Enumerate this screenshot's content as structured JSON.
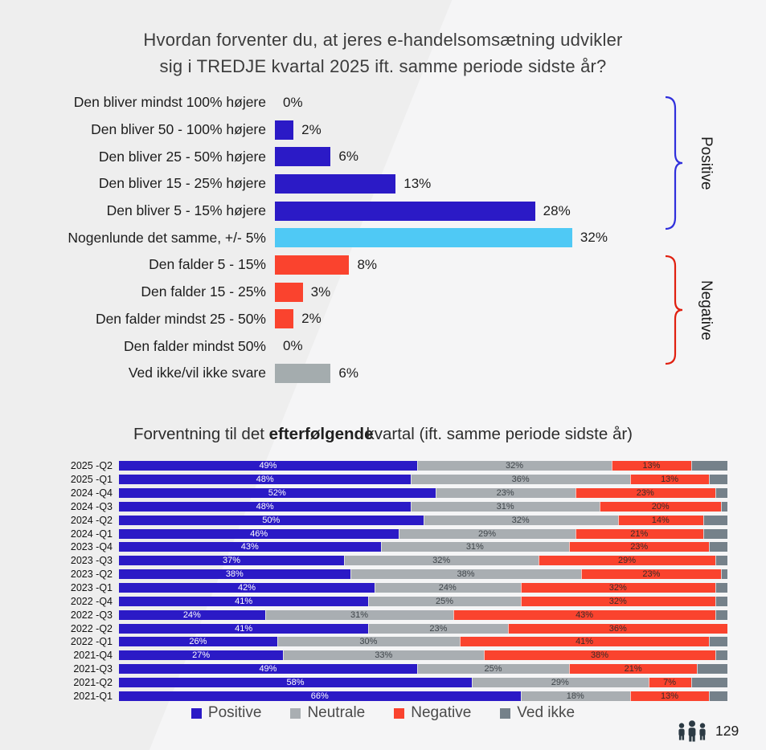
{
  "header": {
    "title_line1": "Hvordan forventer du, at jeres e-handelsomsætning udvikler",
    "title_line2": "sig i TREDJE kvartal 2025 ift. samme periode sidste år?"
  },
  "brackets": {
    "positive": "Positive",
    "negative": "Negative"
  },
  "bottom_header": {
    "prefix": "Forventning til det ",
    "bold": "efterfølgende",
    "suffix": "kvartal (ift. samme periode sidste år)"
  },
  "legend": [
    {
      "label": "Positive",
      "color": "#2b1ac6"
    },
    {
      "label": "Neutrale",
      "color": "#a9aeb2"
    },
    {
      "label": "Negative",
      "color": "#fa432e"
    },
    {
      "label": "Ved ikke",
      "color": "#75818a"
    }
  ],
  "footer": {
    "respondent_count": "129",
    "icon": "people-group-icon"
  },
  "colors": {
    "positive_blue": "#2b1ac6",
    "neutral_lightblue": "#4fc9f5",
    "negative_red": "#fa432e",
    "unknown_gray_top": "#a4acae",
    "neutral_gray": "#a9aeb2",
    "ved_ikke_gray": "#75818a",
    "bracket_blue": "#3030dc",
    "bracket_red": "#e02010",
    "background": "#eeeeee"
  },
  "chart_data": [
    {
      "type": "bar",
      "orientation": "horizontal",
      "title": "Hvordan forventer du, at jeres e-handelsomsætning udvikler sig i TREDJE kvartal 2025 ift. samme periode sidste år?",
      "categories": [
        "Den bliver mindst 100% højere",
        "Den bliver 50 - 100% højere",
        "Den bliver 25 - 50% højere",
        "Den bliver 15 - 25% højere",
        "Den bliver 5 - 15% højere",
        "Nogenlunde det samme, +/- 5%",
        "Den falder 5 - 15%",
        "Den falder 15 - 25%",
        "Den falder mindst 25 - 50%",
        "Den falder mindst 50%",
        "Ved ikke/vil ikke svare"
      ],
      "values": [
        0,
        2,
        6,
        13,
        28,
        32,
        8,
        3,
        2,
        0,
        6
      ],
      "value_labels": [
        "0%",
        "2%",
        "6%",
        "13%",
        "28%",
        "32%",
        "8%",
        "3%",
        "2%",
        "0%",
        "6%"
      ],
      "groups": [
        "positive",
        "positive",
        "positive",
        "positive",
        "positive",
        "neutral",
        "negative",
        "negative",
        "negative",
        "negative",
        "unknown"
      ],
      "xlim": [
        0,
        32
      ],
      "annotations": [
        "Positive bracket spans the five 'højere' rows",
        "Negative bracket spans the four 'falder' rows"
      ]
    },
    {
      "type": "bar",
      "subtype": "stacked-horizontal",
      "title": "Forventning til det efterfølgende kvartal (ift. samme periode sidste år)",
      "categories": [
        "2025 -Q2",
        "2025 -Q1",
        "2024 -Q4",
        "2024 -Q3",
        "2024 -Q2",
        "2024 -Q1",
        "2023 -Q4",
        "2023 -Q3",
        "2023 -Q2",
        "2023 -Q1",
        "2022 -Q4",
        "2022 -Q3",
        "2022 -Q2",
        "2022 -Q1",
        "2021-Q4",
        "2021-Q3",
        "2021-Q2",
        "2021-Q1"
      ],
      "series": [
        {
          "name": "Positive",
          "color": "#2b1ac6",
          "values": [
            49,
            48,
            52,
            48,
            50,
            46,
            43,
            37,
            38,
            42,
            41,
            24,
            41,
            26,
            27,
            49,
            58,
            66
          ]
        },
        {
          "name": "Neutrale",
          "color": "#a9aeb2",
          "values": [
            32,
            36,
            23,
            31,
            32,
            29,
            31,
            32,
            38,
            24,
            25,
            31,
            23,
            30,
            33,
            25,
            29,
            18
          ]
        },
        {
          "name": "Negative",
          "color": "#fa432e",
          "values": [
            13,
            13,
            23,
            20,
            14,
            21,
            23,
            29,
            23,
            32,
            32,
            43,
            36,
            41,
            38,
            21,
            7,
            13
          ]
        },
        {
          "name": "Ved ikke",
          "color": "#75818a",
          "values": [
            6,
            3,
            2,
            1,
            4,
            4,
            3,
            2,
            1,
            2,
            2,
            2,
            0,
            3,
            2,
            5,
            6,
            3
          ]
        }
      ],
      "xlim": [
        0,
        100
      ],
      "legend_position": "bottom"
    }
  ]
}
